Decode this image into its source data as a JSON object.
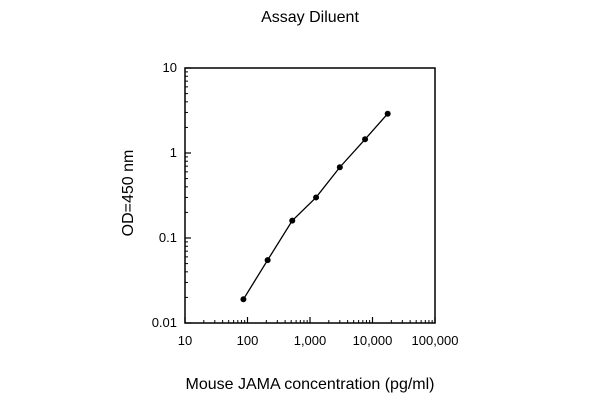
{
  "chart_data": {
    "type": "line",
    "title": "Assay Diluent",
    "xlabel": "Mouse JAMA concentration (pg/ml)",
    "ylabel": "OD=450 nm",
    "xscale": "log",
    "yscale": "log",
    "xlim": [
      10,
      100000
    ],
    "ylim": [
      0.01,
      10
    ],
    "x_ticks": [
      10,
      100,
      1000,
      10000,
      100000
    ],
    "x_tick_labels": [
      "10",
      "100",
      "1,000",
      "10,000",
      "100,000"
    ],
    "y_ticks": [
      0.01,
      0.1,
      1,
      10
    ],
    "y_tick_labels": [
      "0.01",
      "0.1",
      "1",
      "10"
    ],
    "grid": false,
    "legend": "none",
    "series": [
      {
        "x": [
          86,
          210,
          520,
          1250,
          3000,
          7600,
          17500
        ],
        "y": [
          0.019,
          0.055,
          0.16,
          0.3,
          0.68,
          1.45,
          2.9
        ],
        "color": "#000000",
        "marker": "circle"
      }
    ]
  }
}
